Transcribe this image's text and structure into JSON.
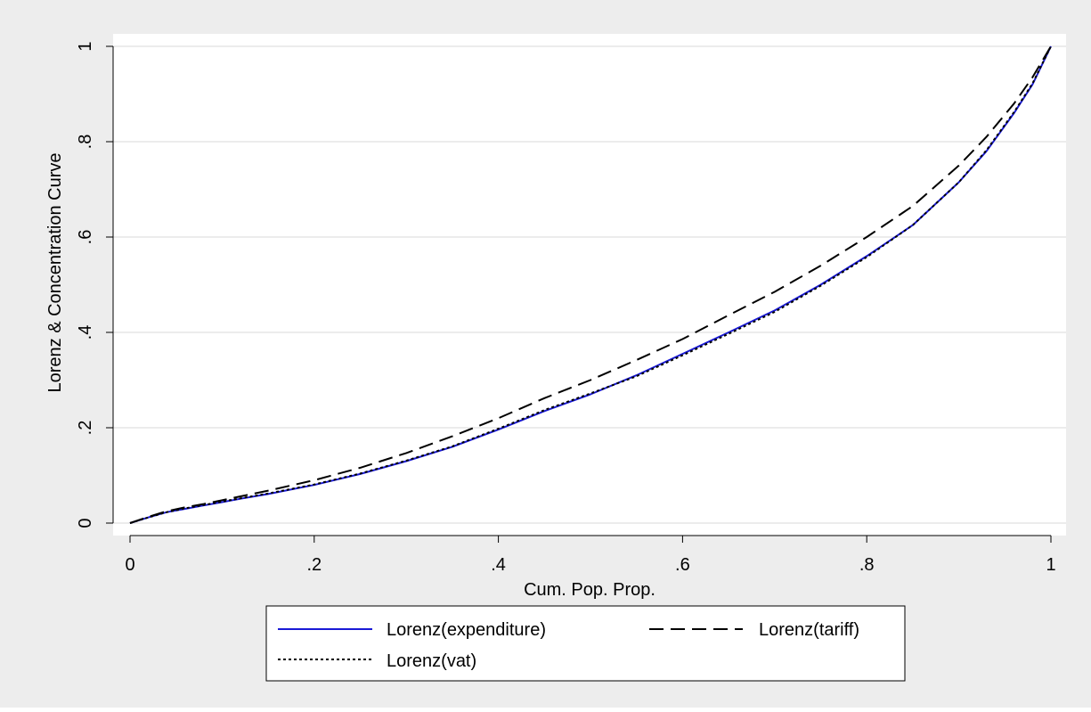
{
  "chart_data": {
    "type": "line",
    "title": "",
    "xlabel": "Cum. Pop. Prop.",
    "ylabel": "Lorenz & Concentration Curve",
    "xlim": [
      0,
      1
    ],
    "ylim": [
      0,
      1
    ],
    "grid": true,
    "legend_position": "bottom",
    "x_ticks": [
      {
        "value": 0,
        "label": "0"
      },
      {
        "value": 0.2,
        "label": ".2"
      },
      {
        "value": 0.4,
        "label": ".4"
      },
      {
        "value": 0.6,
        "label": ".6"
      },
      {
        "value": 0.8,
        "label": ".8"
      },
      {
        "value": 1,
        "label": "1"
      }
    ],
    "y_ticks": [
      {
        "value": 0,
        "label": "0"
      },
      {
        "value": 0.2,
        "label": ".2"
      },
      {
        "value": 0.4,
        "label": ".4"
      },
      {
        "value": 0.6,
        "label": ".6"
      },
      {
        "value": 0.8,
        "label": ".8"
      },
      {
        "value": 1,
        "label": "1"
      }
    ],
    "x": [
      0,
      0.02,
      0.04,
      0.06,
      0.08,
      0.1,
      0.12,
      0.15,
      0.2,
      0.25,
      0.3,
      0.35,
      0.4,
      0.45,
      0.5,
      0.55,
      0.6,
      0.65,
      0.7,
      0.75,
      0.8,
      0.85,
      0.9,
      0.93,
      0.96,
      0.98,
      1.0
    ],
    "series": [
      {
        "name": "Lorenz(expenditure)",
        "color": "#1a1ad6",
        "dash": "solid",
        "values": [
          0,
          0.012,
          0.023,
          0.03,
          0.037,
          0.044,
          0.051,
          0.061,
          0.08,
          0.103,
          0.13,
          0.16,
          0.196,
          0.235,
          0.27,
          0.31,
          0.355,
          0.4,
          0.446,
          0.5,
          0.56,
          0.625,
          0.715,
          0.78,
          0.86,
          0.92,
          1.0
        ]
      },
      {
        "name": "Lorenz(tariff)",
        "color": "#000000",
        "dash": "long-dash",
        "values": [
          0,
          0.013,
          0.025,
          0.033,
          0.04,
          0.048,
          0.056,
          0.068,
          0.09,
          0.116,
          0.147,
          0.182,
          0.22,
          0.262,
          0.3,
          0.342,
          0.386,
          0.436,
          0.485,
          0.54,
          0.6,
          0.665,
          0.75,
          0.81,
          0.88,
          0.935,
          1.0
        ]
      },
      {
        "name": "Lorenz(vat)",
        "color": "#000000",
        "dash": "dotted",
        "values": [
          0,
          0.012,
          0.023,
          0.031,
          0.038,
          0.045,
          0.052,
          0.062,
          0.081,
          0.104,
          0.131,
          0.161,
          0.198,
          0.237,
          0.272,
          0.308,
          0.352,
          0.397,
          0.443,
          0.498,
          0.558,
          0.625,
          0.715,
          0.782,
          0.862,
          0.922,
          1.0
        ]
      }
    ]
  }
}
